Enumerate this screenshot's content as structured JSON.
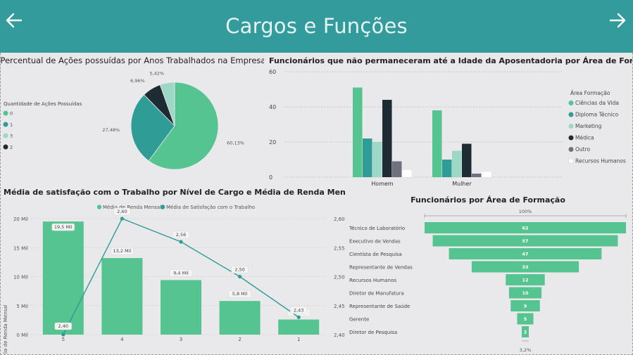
{
  "header": {
    "title": "Cargos e Funções",
    "back_icon": "arrow-left-icon",
    "forward_icon": "arrow-right-icon"
  },
  "colors": {
    "header_bg": "#339b9b",
    "series": [
      "#56c490",
      "#2f9c96",
      "#9dd8c6",
      "#1f2b33",
      "#70717e",
      "#ffffff"
    ]
  },
  "chart_data": [
    {
      "type": "pie",
      "title": "Percentual de Ações possuídas por Anos Trabalhados na Empresa",
      "legend_title": "Quantidade de Ações Possuídas",
      "legend_position": "left",
      "categories": [
        "0",
        "1",
        "2",
        "3"
      ],
      "values": [
        60.13,
        27.48,
        6.96,
        5.42
      ],
      "value_labels": [
        "60,13%",
        "27,48%",
        "6,96%",
        "5,42%"
      ],
      "legend_items": [
        "0",
        "1",
        "3",
        "2"
      ]
    },
    {
      "type": "bar",
      "title": "Funcionários que não permaneceram até a Idade da Aposentadoria por Área de Formação",
      "legend_title": "Área Formação",
      "legend_position": "right",
      "categories": [
        "Homem",
        "Mulher"
      ],
      "ylim": [
        0,
        60
      ],
      "yticks": [
        "0",
        "20",
        "40",
        "60"
      ],
      "grid": true,
      "series": [
        {
          "name": "Ciências da Vida",
          "values": [
            51,
            38
          ]
        },
        {
          "name": "Diploma Técnico",
          "values": [
            22,
            10
          ]
        },
        {
          "name": "Marketing",
          "values": [
            20,
            15
          ]
        },
        {
          "name": "Médica",
          "values": [
            44,
            19
          ]
        },
        {
          "name": "Outro",
          "values": [
            9,
            2
          ]
        },
        {
          "name": "Recursos Humanos",
          "values": [
            4,
            3
          ]
        }
      ]
    },
    {
      "type": "bar",
      "title": "Média de satisfação com o Trabalho por Nível de Cargo e Média de Renda Mensal",
      "legend_position": "top",
      "categories": [
        "5",
        "4",
        "3",
        "2",
        "1"
      ],
      "ylabel": "Média de Renda Mensal",
      "ylim": [
        0,
        20000
      ],
      "yticks": [
        "0 Mil",
        "5 Mil",
        "10 Mil",
        "15 Mil",
        "20 Mil"
      ],
      "y2lim": [
        2.4,
        2.6
      ],
      "y2ticks": [
        "2,40",
        "2,45",
        "2,50",
        "2,55",
        "2,60"
      ],
      "series": [
        {
          "name": "Média de Renda Mensal",
          "type": "bar",
          "values": [
            19500,
            13200,
            9400,
            5800,
            2600
          ],
          "labels": [
            "19,5 Mil",
            "13,2 Mil",
            "9,4 Mil",
            "5,8 Mil",
            "2,6 Mil"
          ]
        },
        {
          "name": "Média de Satisfação com o Trabalho",
          "type": "line",
          "values": [
            2.4,
            2.6,
            2.56,
            2.5,
            2.43
          ],
          "labels": [
            "2,40",
            "2,60",
            "2,56",
            "2,50",
            "2,43"
          ]
        }
      ]
    },
    {
      "type": "bar",
      "subtype": "funnel",
      "title": "Funcionários por Área de Formação",
      "top_label": "100%",
      "bottom_label": "3,2%",
      "categories": [
        "Técnico de Laboratório",
        "Executivo de Vendas",
        "Cientista de Pesquisa",
        "Representante de Vendas",
        "Recursos Humanos",
        "Diretor de Manufatura",
        "Representante de Saúde",
        "Gerente",
        "Diretor de Pesquisa"
      ],
      "values": [
        62,
        57,
        47,
        33,
        12,
        10,
        9,
        5,
        2
      ]
    }
  ]
}
